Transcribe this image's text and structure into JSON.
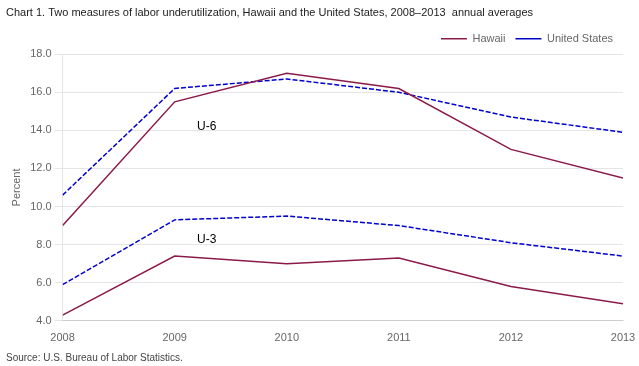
{
  "chart_data": {
    "type": "line",
    "title": "Chart 1. Two measures of labor underutilization, Hawaii and the United States, 2008–2013  annual averages",
    "ylabel": "Percent",
    "source": "Source: U.S. Bureau of Labor Statistics.",
    "x": [
      2008,
      2009,
      2010,
      2011,
      2012,
      2013
    ],
    "series": [
      {
        "name": "Hawaii",
        "color": "#8B1A4A",
        "line_style": "solid",
        "values": [
          9.0,
          15.5,
          17.0,
          16.2,
          13.0,
          11.5
        ]
      },
      {
        "name": "United States",
        "color": "#0000CD",
        "line_style": "dashed",
        "values": [
          10.6,
          16.2,
          16.7,
          16.0,
          14.7,
          13.9
        ]
      },
      {
        "name": "Hawaii",
        "color": "#8B1A4A",
        "line_style": "solid",
        "values": [
          4.3,
          7.4,
          7.0,
          7.3,
          5.8,
          4.9
        ]
      },
      {
        "name": "United States",
        "color": "#0000CD",
        "line_style": "dashed",
        "values": [
          5.9,
          9.3,
          9.5,
          9.0,
          8.1,
          7.4
        ]
      }
    ],
    "annotations": [
      {
        "text": "U-6",
        "x": 2009.2,
        "y": 14.0
      },
      {
        "text": "U-3",
        "x": 2009.2,
        "y": 8.1
      }
    ],
    "xlim": [
      2008,
      2013
    ],
    "xticks": [
      2008,
      2009,
      2010,
      2011,
      2012,
      2013
    ],
    "ylim": [
      4.0,
      18.0
    ],
    "yticks": [
      {
        "value": 4.0,
        "label": "4.0"
      },
      {
        "value": 6.0,
        "label": "6.0"
      },
      {
        "value": 8.0,
        "label": "8.0"
      },
      {
        "value": 10.0,
        "label": "10.0"
      },
      {
        "value": 12.0,
        "label": "12.0"
      },
      {
        "value": 14.0,
        "label": "14.0"
      },
      {
        "value": 16.0,
        "label": "16.0"
      },
      {
        "value": 18.0,
        "label": "18.0"
      }
    ],
    "grid": "y",
    "legend": "upper right"
  }
}
